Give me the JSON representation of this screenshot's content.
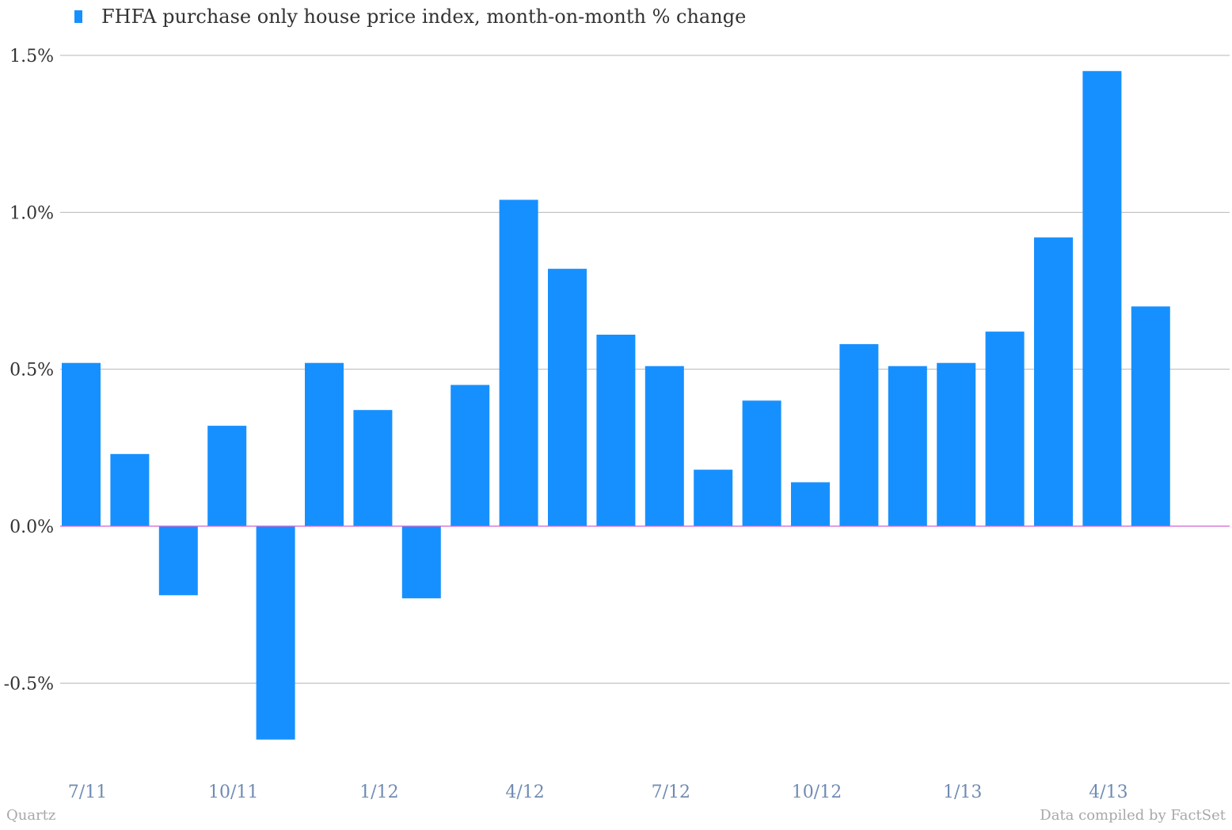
{
  "legend": {
    "label": "FHFA purchase only house price index, month-on-month % change"
  },
  "footer": {
    "source_left": "Quartz",
    "source_right": "Data compiled by FactSet"
  },
  "colors": {
    "bar": "#1790ff",
    "grid": "#b7b7b7",
    "zero_line": "#d45fd0",
    "ytick_text": "#333333",
    "xtick_text": "#6f8bb3"
  },
  "chart_data": {
    "type": "bar",
    "title": "",
    "xlabel": "",
    "ylabel": "",
    "ylim": [
      -0.7,
      1.5
    ],
    "yticks": [
      1.5,
      1.0,
      0.5,
      0.0,
      -0.5
    ],
    "ytick_labels": [
      "1.5%",
      "1.0%",
      "0.5%",
      "0.0%",
      "-0.5%"
    ],
    "grid": true,
    "legend_position": "top-left",
    "categories": [
      "7/11",
      "8/11",
      "9/11",
      "10/11",
      "11/11",
      "12/11",
      "1/12",
      "2/12",
      "3/12",
      "4/12",
      "5/12",
      "6/12",
      "7/12",
      "8/12",
      "9/12",
      "10/12",
      "11/12",
      "12/12",
      "1/13",
      "2/13",
      "3/13",
      "4/13",
      "5/13"
    ],
    "xtick_labels": [
      {
        "label": "7/11",
        "category": "7/11"
      },
      {
        "label": "10/11",
        "category": "10/11"
      },
      {
        "label": "1/12",
        "category": "1/12"
      },
      {
        "label": "4/12",
        "category": "4/12"
      },
      {
        "label": "7/12",
        "category": "7/12"
      },
      {
        "label": "10/12",
        "category": "10/12"
      },
      {
        "label": "1/13",
        "category": "1/13"
      },
      {
        "label": "4/13",
        "category": "4/13"
      }
    ],
    "series": [
      {
        "name": "FHFA purchase only house price index, month-on-month % change",
        "values": [
          0.52,
          0.23,
          -0.22,
          0.32,
          -0.68,
          0.52,
          0.37,
          -0.23,
          0.45,
          1.04,
          0.82,
          0.61,
          0.51,
          0.18,
          0.4,
          0.14,
          0.58,
          0.51,
          0.52,
          0.62,
          0.92,
          1.45,
          0.7
        ]
      }
    ]
  }
}
